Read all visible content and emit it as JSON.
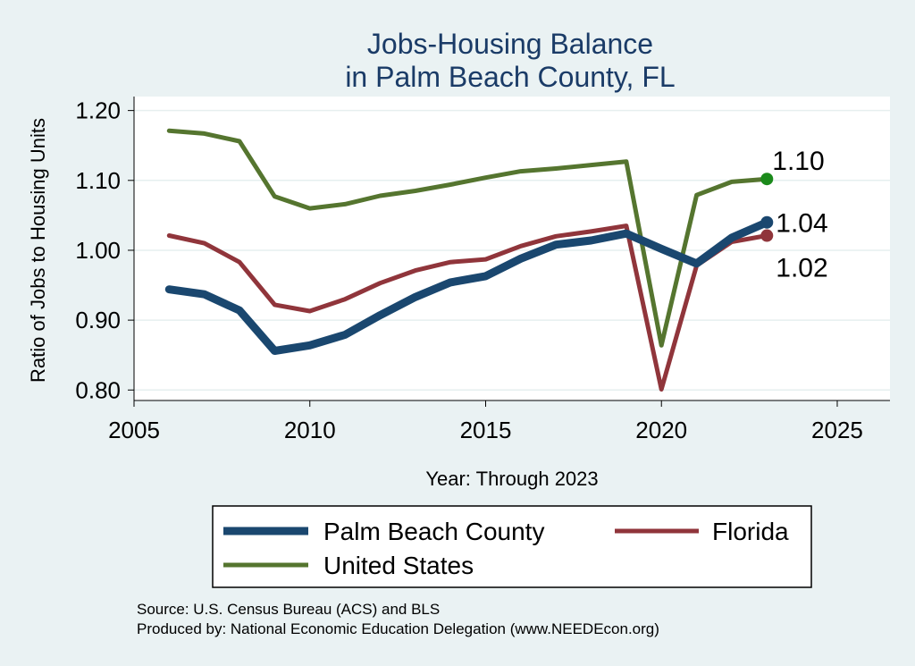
{
  "chart_data": {
    "type": "line",
    "title": [
      "Jobs-Housing Balance",
      "in Palm Beach County, FL"
    ],
    "xlabel": "Year: Through 2023",
    "ylabel": "Ratio of Jobs to Housing Units",
    "xlim": [
      2005,
      2026.5
    ],
    "ylim": [
      0.785,
      1.22
    ],
    "xticks": [
      2005,
      2010,
      2015,
      2020,
      2025
    ],
    "yticks": [
      0.8,
      0.9,
      1.0,
      1.1,
      1.2
    ],
    "ytick_labels": [
      "0.80",
      "0.90",
      "1.00",
      "1.10",
      "1.20"
    ],
    "x": [
      2006,
      2007,
      2008,
      2009,
      2010,
      2011,
      2012,
      2013,
      2014,
      2015,
      2016,
      2017,
      2018,
      2019,
      2020,
      2021,
      2022,
      2023
    ],
    "series": [
      {
        "name": "Palm Beach County",
        "color": "#1a476f",
        "values": [
          0.944,
          0.937,
          0.914,
          0.856,
          0.864,
          0.879,
          0.907,
          0.933,
          0.954,
          0.963,
          0.988,
          1.008,
          1.014,
          1.024,
          1.002,
          0.981,
          1.018,
          1.04
        ],
        "end_label": "1.04"
      },
      {
        "name": "Florida",
        "color": "#90353b",
        "values": [
          1.021,
          1.01,
          0.983,
          0.922,
          0.913,
          0.93,
          0.953,
          0.971,
          0.983,
          0.987,
          1.006,
          1.02,
          1.027,
          1.035,
          0.801,
          0.978,
          1.012,
          1.021
        ],
        "end_label": "1.02"
      },
      {
        "name": "United States",
        "color": "#55752f",
        "values": [
          1.171,
          1.167,
          1.156,
          1.077,
          1.06,
          1.066,
          1.078,
          1.085,
          1.094,
          1.104,
          1.113,
          1.117,
          1.122,
          1.127,
          0.864,
          1.079,
          1.098,
          1.102
        ],
        "end_label": "1.10"
      }
    ],
    "end_marker_colors": [
      "#1a476f",
      "#90353b",
      "#1b8a1b"
    ],
    "legend": {
      "position": "bottom",
      "entries": [
        "Palm Beach County",
        "Florida",
        "United States"
      ]
    },
    "source_lines": [
      "Source: U.S. Census Bureau (ACS) and BLS",
      "Produced by: National Economic Education Delegation (www.NEEDEcon.org)"
    ]
  }
}
